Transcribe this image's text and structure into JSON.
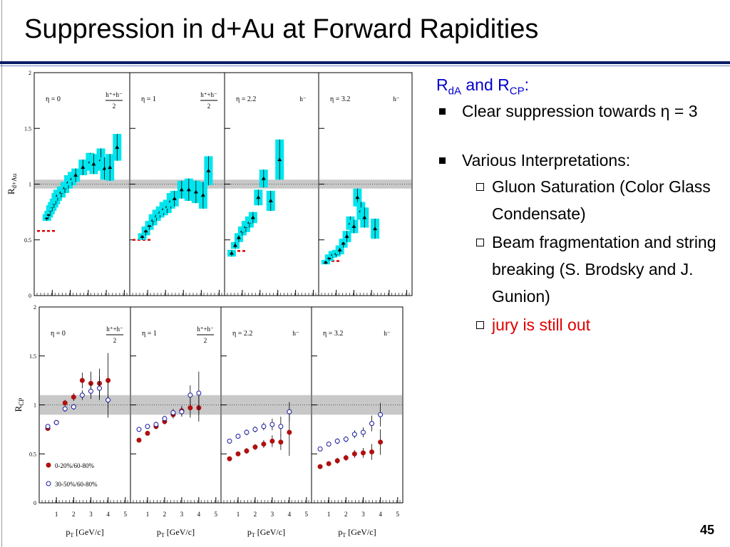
{
  "title": "Suppression in d+Au at Forward Rapidities",
  "notes": {
    "heading": {
      "r1": "R",
      "sub1": "dA",
      "mid": " and R",
      "sub2": "CP",
      "end": ":"
    },
    "bullets": [
      {
        "text": "Clear suppression towards η = 3",
        "items": []
      },
      {
        "text": "Various Interpretations:",
        "items": [
          "Gluon Saturation (Color Glass Condensate)",
          "Beam fragmentation and string breaking (S. Brodsky and J. Gunion)",
          "jury is still out"
        ]
      }
    ]
  },
  "page_number": "45",
  "figure": {
    "xlim": [
      0,
      5.3
    ],
    "ylim": [
      0,
      2
    ],
    "yticks": [
      0,
      0.5,
      1,
      1.5,
      2
    ],
    "xticks": [
      1,
      2,
      3,
      4,
      5
    ],
    "unity": 1,
    "x_label": {
      "main": "p",
      "sub": "T",
      "unit": " [GeV/c]"
    },
    "rows": [
      {
        "y_label": {
          "main": "R",
          "sub": "d+Au"
        },
        "band": [
          0.96,
          1.04
        ],
        "series": [
          {
            "color": "#000000",
            "marker": "triangle",
            "box_color": "#00e5ee"
          }
        ],
        "panels": [
          {
            "eta": "η = 0",
            "particle": {
              "top": "h⁺+h⁻",
              "bottom": "2"
            },
            "reference": 0.58,
            "points": [
              [
                [
                  0.7,
                  0.7,
                  0.03
                ],
                [
                  0.8,
                  0.73,
                  0.03
                ],
                [
                  0.9,
                  0.77,
                  0.04
                ],
                [
                  1.0,
                  0.8,
                  0.04
                ],
                [
                  1.1,
                  0.83,
                  0.04
                ],
                [
                  1.2,
                  0.87,
                  0.05
                ],
                [
                  1.3,
                  0.9,
                  0.05
                ],
                [
                  1.5,
                  0.93,
                  0.05
                ],
                [
                  1.7,
                  0.97,
                  0.05
                ],
                [
                  1.9,
                  1.02,
                  0.06
                ],
                [
                  2.1,
                  1.05,
                  0.06
                ],
                [
                  2.3,
                  1.08,
                  0.06
                ],
                [
                  2.7,
                  1.15,
                  0.07
                ],
                [
                  3.1,
                  1.2,
                  0.08
                ],
                [
                  3.3,
                  1.18,
                  0.09
                ],
                [
                  3.7,
                  1.22,
                  0.1
                ],
                [
                  3.9,
                  1.14,
                  0.1
                ],
                [
                  4.2,
                  1.15,
                  0.12
                ],
                [
                  4.6,
                  1.33,
                  0.12
                ]
              ]
            ]
          },
          {
            "eta": "η = 1",
            "particle": {
              "top": "h⁺+h⁻",
              "bottom": "2"
            },
            "reference": 0.5,
            "points": [
              [
                [
                  0.7,
                  0.53,
                  0.03
                ],
                [
                  0.9,
                  0.58,
                  0.04
                ],
                [
                  1.1,
                  0.63,
                  0.04
                ],
                [
                  1.3,
                  0.68,
                  0.05
                ],
                [
                  1.5,
                  0.72,
                  0.05
                ],
                [
                  1.7,
                  0.75,
                  0.05
                ],
                [
                  1.9,
                  0.78,
                  0.06
                ],
                [
                  2.1,
                  0.8,
                  0.06
                ],
                [
                  2.3,
                  0.85,
                  0.07
                ],
                [
                  2.5,
                  0.87,
                  0.07
                ],
                [
                  2.9,
                  0.95,
                  0.08
                ],
                [
                  3.3,
                  0.95,
                  0.1
                ],
                [
                  3.7,
                  0.93,
                  0.1
                ],
                [
                  4.1,
                  0.9,
                  0.12
                ],
                [
                  4.4,
                  1.12,
                  0.13
                ]
              ]
            ]
          },
          {
            "eta": "η = 2.2",
            "particle": {
              "top": "h⁻"
            },
            "reference": 0.4,
            "points": [
              [
                [
                  0.4,
                  0.38,
                  0.03
                ],
                [
                  0.6,
                  0.45,
                  0.03
                ],
                [
                  0.8,
                  0.52,
                  0.04
                ],
                [
                  1.0,
                  0.58,
                  0.04
                ],
                [
                  1.2,
                  0.62,
                  0.05
                ],
                [
                  1.4,
                  0.66,
                  0.05
                ],
                [
                  1.6,
                  0.7,
                  0.05
                ],
                [
                  1.9,
                  0.88,
                  0.07
                ],
                [
                  2.2,
                  1.05,
                  0.08
                ],
                [
                  2.6,
                  0.85,
                  0.09
                ],
                [
                  3.1,
                  1.22,
                  0.18
                ]
              ]
            ]
          },
          {
            "eta": "η = 3.2",
            "particle": {
              "top": "h⁻"
            },
            "reference": 0.31,
            "points": [
              [
                [
                  0.4,
                  0.3,
                  0.02
                ],
                [
                  0.6,
                  0.34,
                  0.03
                ],
                [
                  0.8,
                  0.37,
                  0.03
                ],
                [
                  1.0,
                  0.38,
                  0.03
                ],
                [
                  1.2,
                  0.41,
                  0.04
                ],
                [
                  1.4,
                  0.47,
                  0.04
                ],
                [
                  1.6,
                  0.53,
                  0.05
                ],
                [
                  1.8,
                  0.65,
                  0.06
                ],
                [
                  2.0,
                  0.62,
                  0.06
                ],
                [
                  2.2,
                  0.88,
                  0.08
                ],
                [
                  2.4,
                  0.76,
                  0.08
                ],
                [
                  2.6,
                  0.7,
                  0.09
                ],
                [
                  3.2,
                  0.6,
                  0.09
                ]
              ]
            ]
          }
        ]
      },
      {
        "y_label": {
          "main": "R",
          "sub": "CP"
        },
        "band": [
          0.9,
          1.1
        ],
        "series": [
          {
            "name": "0-20%/60-80%",
            "color": "#b01010",
            "marker": "filled"
          },
          {
            "name": "30-50%/60-80%",
            "color": "#1a1aa0",
            "marker": "open"
          }
        ],
        "panels": [
          {
            "eta": "η = 0",
            "particle": {
              "top": "h⁺+h⁻",
              "bottom": "2"
            },
            "points": [
              [
                [
                  0.5,
                  0.76,
                  0.02
                ],
                [
                  1.0,
                  0.82,
                  0.02
                ],
                [
                  1.5,
                  1.02,
                  0.03
                ],
                [
                  2.0,
                  1.08,
                  0.04
                ],
                [
                  2.5,
                  1.25,
                  0.08
                ],
                [
                  3.0,
                  1.22,
                  0.12
                ],
                [
                  3.5,
                  1.22,
                  0.15
                ],
                [
                  4.0,
                  1.25,
                  0.28
                ]
              ],
              [
                [
                  0.5,
                  0.78,
                  0.02
                ],
                [
                  1.0,
                  0.82,
                  0.02
                ],
                [
                  1.5,
                  0.96,
                  0.03
                ],
                [
                  2.0,
                  0.98,
                  0.03
                ],
                [
                  2.5,
                  1.1,
                  0.05
                ],
                [
                  3.0,
                  1.14,
                  0.08
                ],
                [
                  3.5,
                  1.17,
                  0.12
                ],
                [
                  4.0,
                  1.05,
                  0.18
                ]
              ]
            ]
          },
          {
            "eta": "η = 1",
            "particle": {
              "top": "h⁺+h⁻",
              "bottom": "2"
            },
            "points": [
              [
                [
                  0.5,
                  0.64,
                  0.02
                ],
                [
                  1.0,
                  0.71,
                  0.02
                ],
                [
                  1.5,
                  0.78,
                  0.03
                ],
                [
                  2.0,
                  0.83,
                  0.03
                ],
                [
                  2.5,
                  0.9,
                  0.04
                ],
                [
                  3.0,
                  0.94,
                  0.05
                ],
                [
                  3.5,
                  0.97,
                  0.1
                ],
                [
                  4.0,
                  0.97,
                  0.14
                ]
              ],
              [
                [
                  0.5,
                  0.75,
                  0.02
                ],
                [
                  1.0,
                  0.78,
                  0.02
                ],
                [
                  1.5,
                  0.8,
                  0.03
                ],
                [
                  2.0,
                  0.86,
                  0.03
                ],
                [
                  2.5,
                  0.92,
                  0.04
                ],
                [
                  3.0,
                  0.93,
                  0.05
                ],
                [
                  3.5,
                  1.1,
                  0.1
                ],
                [
                  4.0,
                  1.12,
                  0.22
                ]
              ]
            ]
          },
          {
            "eta": "η = 2.2",
            "particle": {
              "top": "h⁻"
            },
            "points": [
              [
                [
                  0.5,
                  0.45,
                  0.02
                ],
                [
                  1.0,
                  0.5,
                  0.02
                ],
                [
                  1.5,
                  0.53,
                  0.03
                ],
                [
                  2.0,
                  0.57,
                  0.03
                ],
                [
                  2.5,
                  0.6,
                  0.04
                ],
                [
                  3.0,
                  0.63,
                  0.06
                ],
                [
                  3.5,
                  0.62,
                  0.08
                ],
                [
                  4.0,
                  0.72,
                  0.24
                ]
              ],
              [
                [
                  0.5,
                  0.63,
                  0.02
                ],
                [
                  1.0,
                  0.68,
                  0.02
                ],
                [
                  1.5,
                  0.72,
                  0.03
                ],
                [
                  2.0,
                  0.75,
                  0.03
                ],
                [
                  2.5,
                  0.78,
                  0.04
                ],
                [
                  3.0,
                  0.8,
                  0.06
                ],
                [
                  3.5,
                  0.78,
                  0.1
                ],
                [
                  4.0,
                  0.93,
                  0.1
                ]
              ]
            ]
          },
          {
            "eta": "η = 3.2",
            "particle": {
              "top": "h⁻"
            },
            "points": [
              [
                [
                  0.5,
                  0.37,
                  0.02
                ],
                [
                  1.0,
                  0.4,
                  0.02
                ],
                [
                  1.5,
                  0.43,
                  0.03
                ],
                [
                  2.0,
                  0.46,
                  0.03
                ],
                [
                  2.5,
                  0.5,
                  0.04
                ],
                [
                  3.0,
                  0.51,
                  0.05
                ],
                [
                  3.5,
                  0.52,
                  0.08
                ],
                [
                  4.0,
                  0.62,
                  0.13
                ]
              ],
              [
                [
                  0.5,
                  0.55,
                  0.02
                ],
                [
                  1.0,
                  0.6,
                  0.02
                ],
                [
                  1.5,
                  0.63,
                  0.03
                ],
                [
                  2.0,
                  0.65,
                  0.03
                ],
                [
                  2.5,
                  0.7,
                  0.04
                ],
                [
                  3.0,
                  0.72,
                  0.05
                ],
                [
                  3.5,
                  0.81,
                  0.08
                ],
                [
                  4.0,
                  0.9,
                  0.12
                ]
              ]
            ]
          }
        ]
      }
    ]
  }
}
